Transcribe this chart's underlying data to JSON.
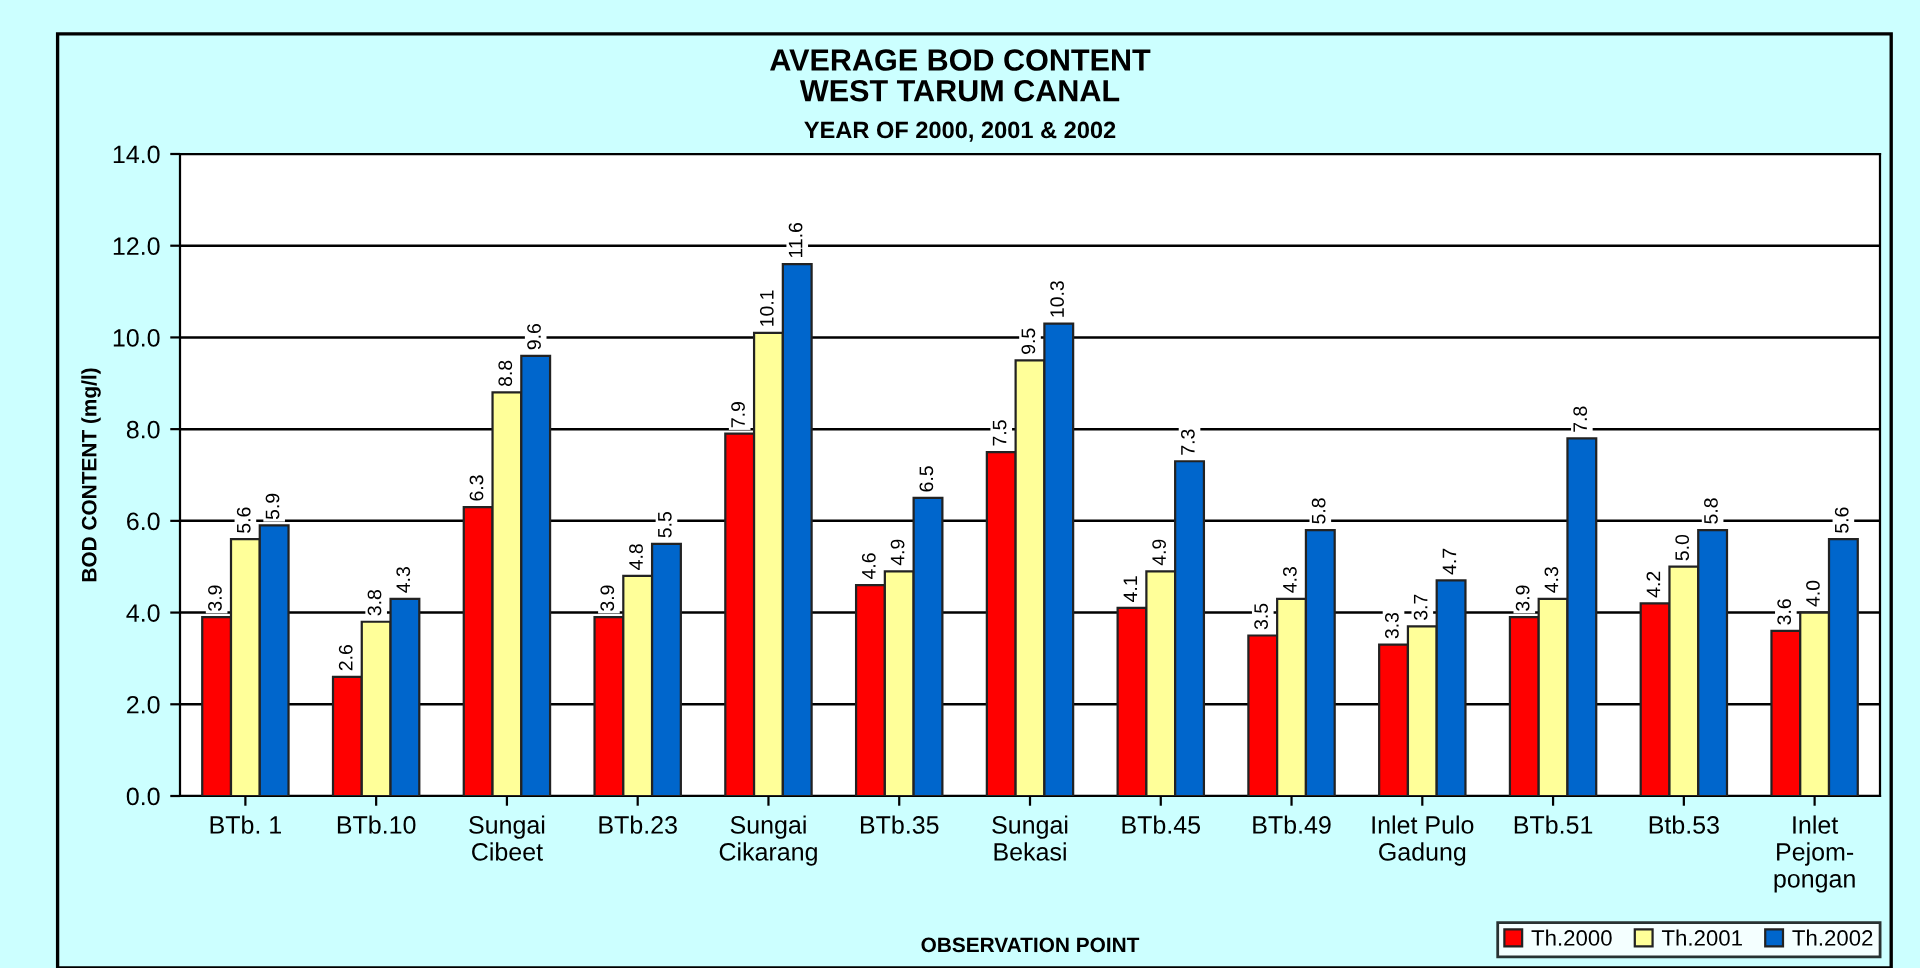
{
  "chart_data": {
    "type": "bar",
    "title": "AVERAGE BOD CONTENT\nWEST TARUM CANAL",
    "subtitle": "YEAR OF 2000, 2001 & 2002",
    "xlabel": "OBSERVATION POINT",
    "ylabel": "BOD CONTENT (mg/l)",
    "categories": [
      "BTb. 1",
      "BTb.10",
      "Sungai\nCibeet",
      "BTb.23",
      "Sungai\nCikarang",
      "BTb.35",
      "Sungai\nBekasi",
      "BTb.45",
      "BTb.49",
      "Inlet Pulo\nGadung",
      "BTb.51",
      "Btb.53",
      "Inlet\nPejom-\npongan"
    ],
    "series": [
      {
        "name": "Th.2000",
        "color": "#ff0000",
        "values": [
          3.9,
          2.6,
          6.3,
          3.9,
          7.9,
          4.6,
          7.5,
          4.1,
          3.5,
          3.3,
          3.9,
          4.2,
          3.6
        ],
        "value_labels": [
          "3.9",
          "2.6",
          "6.3",
          "3.9",
          "7.9",
          "4.6",
          "7.5",
          "4.1",
          "3.5",
          "3.3",
          "3.9",
          "4.2",
          "3.6"
        ]
      },
      {
        "name": "Th.2001",
        "color": "#ffff99",
        "values": [
          5.6,
          3.8,
          8.8,
          4.8,
          10.1,
          4.9,
          9.5,
          4.9,
          4.3,
          3.7,
          4.3,
          5.0,
          4.0
        ],
        "value_labels": [
          "5.6",
          "3.8",
          "8.8",
          "4.8",
          "10.1",
          "4.9",
          "9.5",
          "4.9",
          "4.3",
          "3.7",
          "4.3",
          "5.0",
          "4.0"
        ]
      },
      {
        "name": "Th.2002",
        "color": "#0066cc",
        "values": [
          5.9,
          4.3,
          9.6,
          5.5,
          11.6,
          6.5,
          10.3,
          7.3,
          5.8,
          4.7,
          7.8,
          5.8,
          5.6
        ],
        "value_labels": [
          "5.9",
          "4.3",
          "9.6",
          "5.5",
          "11.6",
          "6.5",
          "10.3",
          "7.3",
          "5.8",
          "4.7",
          "7.8",
          "5.8",
          "5.6"
        ]
      }
    ],
    "ylim": [
      0,
      14
    ],
    "yticks": [
      {
        "value": 0,
        "label": "0.0"
      },
      {
        "value": 2,
        "label": "2.0"
      },
      {
        "value": 4,
        "label": "4.0"
      },
      {
        "value": 6,
        "label": "6.0"
      },
      {
        "value": 8,
        "label": "8.0"
      },
      {
        "value": 10,
        "label": "10.0"
      },
      {
        "value": 12,
        "label": "12.0"
      },
      {
        "value": 14,
        "label": "14.0"
      }
    ],
    "grid": "y",
    "legend": "bottom right"
  }
}
